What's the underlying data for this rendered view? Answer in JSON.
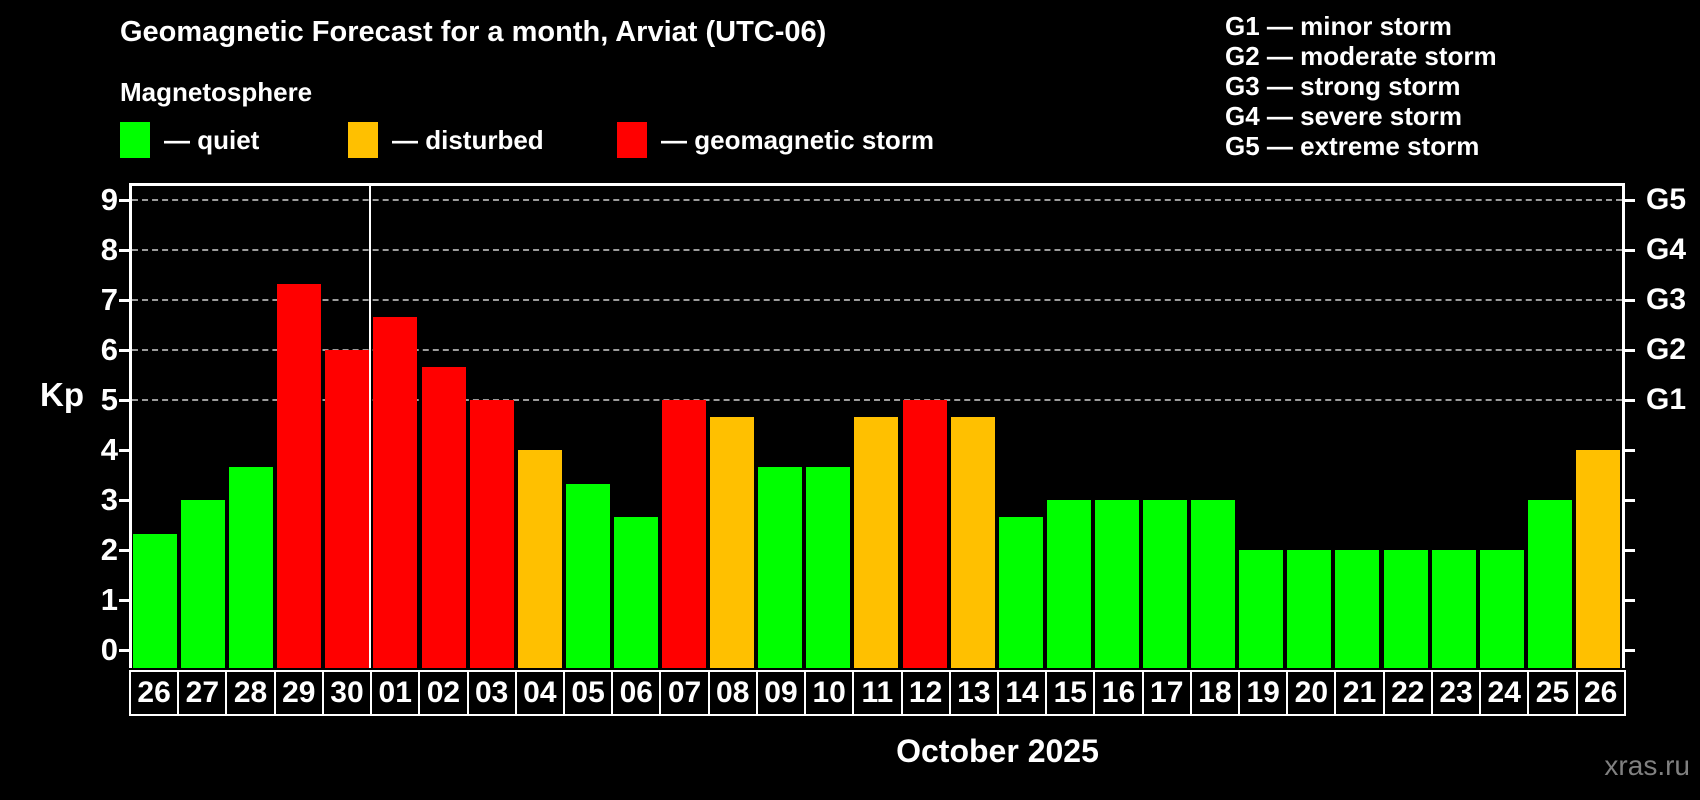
{
  "header": {
    "title": "Geomagnetic Forecast for a month, Arviat (UTC-06)",
    "subtitle": "Magnetosphere"
  },
  "legend": {
    "items": [
      {
        "name": "quiet",
        "label": "— quiet",
        "color": "#00ff00"
      },
      {
        "name": "disturbed",
        "label": "— disturbed",
        "color": "#ffc000"
      },
      {
        "name": "storm",
        "label": "— geomagnetic storm",
        "color": "#ff0000"
      }
    ]
  },
  "g_legend": {
    "lines": [
      "G1 — minor storm",
      "G2 — moderate storm",
      "G3 — strong storm",
      "G4 — severe storm",
      "G5 — extreme storm"
    ]
  },
  "axis": {
    "y_title": "Kp",
    "x_title": "October 2025"
  },
  "watermark": "xras.ru",
  "chart_data": {
    "type": "bar",
    "title": "Geomagnetic Forecast for a month, Arviat (UTC-06)",
    "subtitle": "Magnetosphere",
    "categories": [
      "26",
      "27",
      "28",
      "29",
      "30",
      "01",
      "02",
      "03",
      "04",
      "05",
      "06",
      "07",
      "08",
      "09",
      "10",
      "11",
      "12",
      "13",
      "14",
      "15",
      "16",
      "17",
      "18",
      "19",
      "20",
      "21",
      "22",
      "23",
      "24",
      "25",
      "26"
    ],
    "values": [
      2.33,
      3,
      3.67,
      7.33,
      6,
      6.67,
      5.67,
      5,
      4,
      3.33,
      2.67,
      5,
      4.67,
      3.67,
      3.67,
      4.67,
      5,
      4.67,
      2.67,
      3,
      3,
      3,
      3,
      2,
      2,
      2,
      2,
      2,
      2,
      3,
      4
    ],
    "statuses": [
      "quiet",
      "quiet",
      "quiet",
      "storm",
      "storm",
      "storm",
      "storm",
      "storm",
      "disturbed",
      "quiet",
      "quiet",
      "storm",
      "disturbed",
      "quiet",
      "quiet",
      "disturbed",
      "storm",
      "disturbed",
      "quiet",
      "quiet",
      "quiet",
      "quiet",
      "quiet",
      "quiet",
      "quiet",
      "quiet",
      "quiet",
      "quiet",
      "quiet",
      "quiet",
      "disturbed"
    ],
    "status_colors": {
      "quiet": "#00ff00",
      "disturbed": "#ffc000",
      "storm": "#ff0000"
    },
    "ylabel": "Kp",
    "xlabel": "October 2025",
    "ylim": [
      0,
      9
    ],
    "y_ticks": [
      0,
      1,
      2,
      3,
      4,
      5,
      6,
      7,
      8,
      9
    ],
    "grid_levels": [
      5,
      6,
      7,
      8,
      9
    ],
    "right_axis_labels": [
      {
        "level": 5,
        "label": "G1"
      },
      {
        "level": 6,
        "label": "G2"
      },
      {
        "level": 7,
        "label": "G3"
      },
      {
        "level": 8,
        "label": "G4"
      },
      {
        "level": 9,
        "label": "G5"
      }
    ],
    "month_boundary_before_index": 5,
    "grid": "horizontal dashed lines at storm levels only",
    "legend_position": "top-left"
  }
}
